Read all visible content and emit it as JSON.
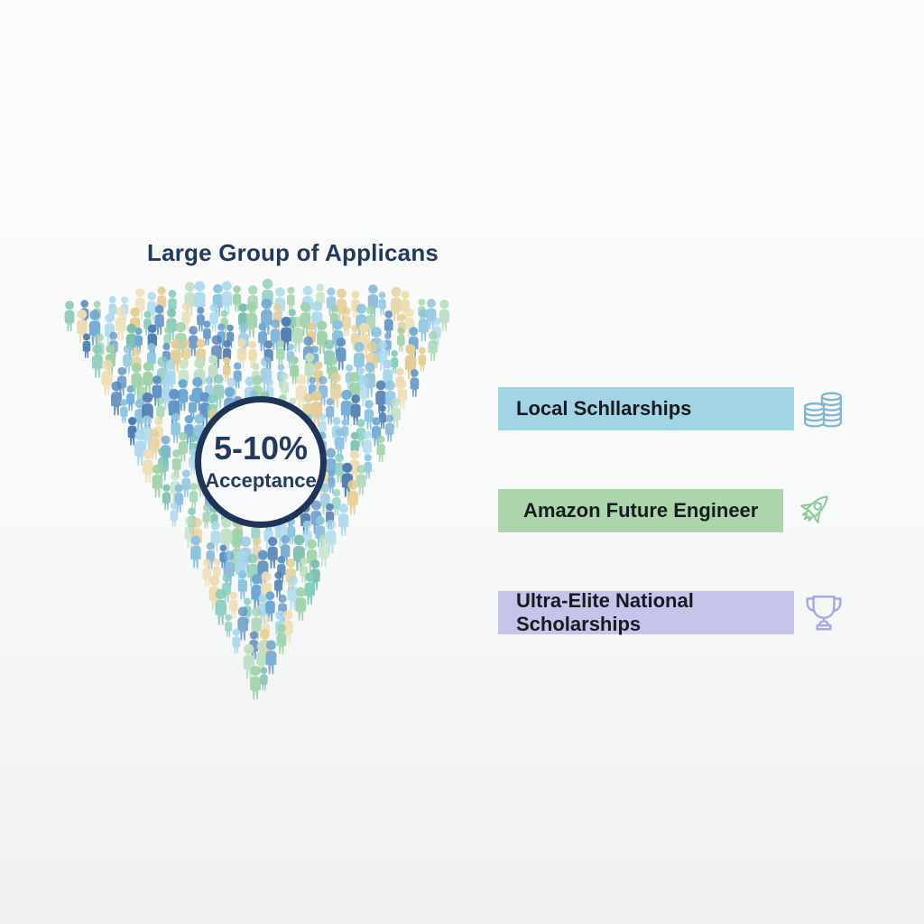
{
  "title": "Large Group of Applicans",
  "funnel": {
    "badge": {
      "percent": "5-10%",
      "label": "Acceptance"
    },
    "ring_color": "#1e3557",
    "palette": [
      "#8cc3df",
      "#6ea9d4",
      "#a9d8ec",
      "#4f7fb2",
      "#5f93c4",
      "#8cc3df",
      "#79c0b0",
      "#9fd2a9",
      "#bfe0c4",
      "#84ccbb",
      "#e4cd94",
      "#eeddb2",
      "#6ea9d4",
      "#a9d8ec",
      "#e4cd94",
      "#9fd2a9"
    ]
  },
  "tiers": [
    {
      "label": "Local Schllarships",
      "bar_color": "#a3d4e5",
      "icon": "coins-icon",
      "icon_color": "#7fb6d2"
    },
    {
      "label": "Amazon Future Engineer",
      "bar_color": "#add5ac",
      "icon": "rocket-icon",
      "icon_color": "#8fc998"
    },
    {
      "label": "Ultra-Elite National Scholarships",
      "bar_color": "#c5c5eb",
      "icon": "trophy-icon",
      "icon_color": "#a8a8e2"
    }
  ]
}
